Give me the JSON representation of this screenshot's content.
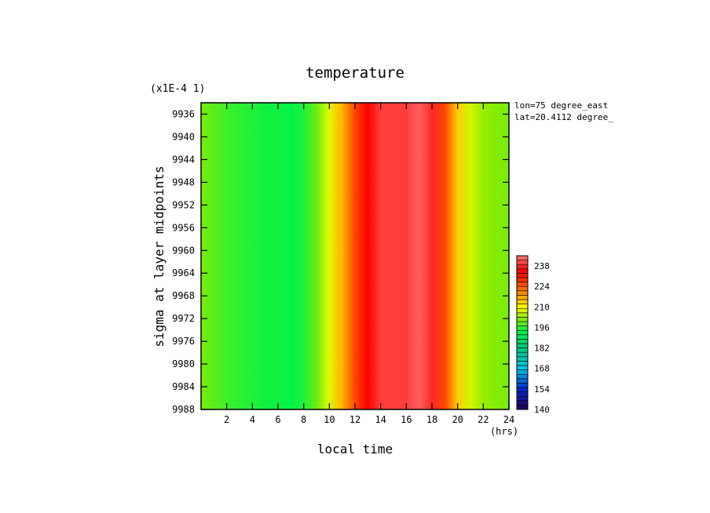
{
  "chart_data": {
    "type": "heatmap",
    "title": "temperature",
    "scale_label": "(x1E-4 1)",
    "xlabel": "local time",
    "xunit": "(hrs)",
    "ylabel": "sigma at layer midpoints",
    "annotations": [
      "lon=75 degree_east",
      "lat=20.4112 degree_"
    ],
    "xlim": [
      0,
      24
    ],
    "ylim": [
      9934,
      9988
    ],
    "y_inverted": true,
    "x_ticks": [
      "2",
      "4",
      "6",
      "8",
      "10",
      "12",
      "14",
      "16",
      "18",
      "20",
      "22",
      "24"
    ],
    "y_ticks": [
      "9936",
      "9940",
      "9944",
      "9948",
      "9952",
      "9956",
      "9960",
      "9964",
      "9968",
      "9972",
      "9976",
      "9980",
      "9984",
      "9988"
    ],
    "colorbar": {
      "min": 140,
      "max": 245,
      "ticks": [
        "140",
        "154",
        "168",
        "182",
        "196",
        "210",
        "224",
        "238"
      ]
    },
    "x_hours": [
      0,
      1,
      2,
      3,
      4,
      5,
      6,
      7,
      8,
      9,
      10,
      11,
      12,
      13,
      14,
      15,
      16,
      17,
      18,
      19,
      20,
      21,
      22,
      23,
      24
    ],
    "temperature_by_hour": [
      201,
      199,
      197,
      196,
      195,
      194,
      194,
      193,
      195,
      200,
      208,
      216,
      226,
      234,
      240,
      240,
      240,
      243,
      238,
      226,
      214,
      207,
      203,
      202,
      201
    ]
  },
  "colors": {
    "axis": "#000000",
    "background": "#ffffff",
    "warm_peak": "#ff7070",
    "cool_trough": "#00f040"
  }
}
